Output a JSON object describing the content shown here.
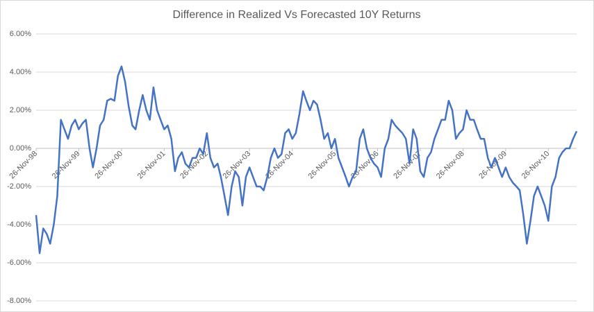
{
  "chart_data": {
    "type": "line",
    "title": "Difference in Realized Vs Forecasted 10Y Returns",
    "x": [
      "1998-11-26",
      "1998-12-26",
      "1999-01-26",
      "1999-02-26",
      "1999-03-26",
      "1999-04-26",
      "1999-05-26",
      "1999-06-26",
      "1999-07-26",
      "1999-08-26",
      "1999-09-26",
      "1999-10-26",
      "1999-11-26",
      "1999-12-26",
      "2000-01-26",
      "2000-02-26",
      "2000-03-26",
      "2000-04-26",
      "2000-05-26",
      "2000-06-26",
      "2000-07-26",
      "2000-08-26",
      "2000-09-26",
      "2000-10-26",
      "2000-11-26",
      "2000-12-26",
      "2001-01-26",
      "2001-02-26",
      "2001-03-26",
      "2001-04-26",
      "2001-05-26",
      "2001-06-26",
      "2001-07-26",
      "2001-08-26",
      "2001-09-26",
      "2001-10-26",
      "2001-11-26",
      "2001-12-26",
      "2002-01-26",
      "2002-02-26",
      "2002-03-26",
      "2002-04-26",
      "2002-05-26",
      "2002-06-26",
      "2002-07-26",
      "2002-08-26",
      "2002-09-26",
      "2002-10-26",
      "2002-11-26",
      "2002-12-26",
      "2003-01-26",
      "2003-02-26",
      "2003-03-26",
      "2003-04-26",
      "2003-05-26",
      "2003-06-26",
      "2003-07-26",
      "2003-08-26",
      "2003-09-26",
      "2003-10-26",
      "2003-11-26",
      "2003-12-26",
      "2004-01-26",
      "2004-02-26",
      "2004-03-26",
      "2004-04-26",
      "2004-05-26",
      "2004-06-26",
      "2004-07-26",
      "2004-08-26",
      "2004-09-26",
      "2004-10-26",
      "2004-11-26",
      "2004-12-26",
      "2005-01-26",
      "2005-02-26",
      "2005-03-26",
      "2005-04-26",
      "2005-05-26",
      "2005-06-26",
      "2005-07-26",
      "2005-08-26",
      "2005-09-26",
      "2005-10-26",
      "2005-11-26",
      "2005-12-26",
      "2006-01-26",
      "2006-02-26",
      "2006-03-26",
      "2006-04-26",
      "2006-05-26",
      "2006-06-26",
      "2006-07-26",
      "2006-08-26",
      "2006-09-26",
      "2006-10-26",
      "2006-11-26",
      "2006-12-26",
      "2007-01-26",
      "2007-02-26",
      "2007-03-26",
      "2007-04-26",
      "2007-05-26",
      "2007-06-26",
      "2007-07-26",
      "2007-08-26",
      "2007-09-26",
      "2007-10-26",
      "2007-11-26",
      "2007-12-26",
      "2008-01-26",
      "2008-02-26",
      "2008-03-26",
      "2008-04-26",
      "2008-05-26",
      "2008-06-26",
      "2008-07-26",
      "2008-08-26",
      "2008-09-26",
      "2008-10-26",
      "2008-11-26",
      "2008-12-26",
      "2009-01-26",
      "2009-02-26",
      "2009-03-26",
      "2009-04-26",
      "2009-05-26",
      "2009-06-26",
      "2009-07-26",
      "2009-08-26",
      "2009-09-26",
      "2009-10-26",
      "2009-11-26",
      "2009-12-26",
      "2010-01-26",
      "2010-02-26",
      "2010-03-26",
      "2010-04-26",
      "2010-05-26",
      "2010-06-26",
      "2010-07-26",
      "2010-08-26",
      "2010-09-26",
      "2010-10-26",
      "2010-11-26",
      "2010-12-26",
      "2011-01-26",
      "2011-02-26",
      "2011-03-26",
      "2011-04-26",
      "2011-05-26",
      "2011-06-26",
      "2011-07-26"
    ],
    "series": [
      {
        "color": "#4472c4",
        "values": [
          -3.5,
          -5.5,
          -4.2,
          -4.5,
          -5.0,
          -4.0,
          -2.5,
          1.5,
          1.0,
          0.5,
          1.2,
          1.5,
          1.0,
          1.3,
          1.5,
          0.0,
          -1.0,
          0.0,
          1.2,
          1.5,
          2.5,
          2.6,
          2.5,
          3.8,
          4.3,
          3.5,
          2.2,
          1.2,
          1.0,
          2.0,
          2.8,
          2.0,
          1.5,
          3.2,
          2.0,
          1.5,
          1.0,
          1.2,
          0.5,
          -1.2,
          -0.5,
          -0.2,
          -0.8,
          -1.0,
          -0.5,
          -0.5,
          0.0,
          -0.3,
          0.8,
          -0.5,
          -1.0,
          -0.8,
          -1.5,
          -2.5,
          -3.5,
          -2.0,
          -1.2,
          -1.5,
          -3.0,
          -1.5,
          -1.0,
          -1.5,
          -2.0,
          -2.0,
          -2.2,
          -1.5,
          -0.5,
          0.0,
          -0.5,
          -0.3,
          0.8,
          1.0,
          0.5,
          0.8,
          1.8,
          3.0,
          2.5,
          2.0,
          2.5,
          2.3,
          1.5,
          0.5,
          0.8,
          0.0,
          0.5,
          -0.5,
          -1.0,
          -1.5,
          -2.0,
          -1.5,
          -1.2,
          0.5,
          1.0,
          0.0,
          -0.5,
          -0.8,
          -1.0,
          -1.5,
          0.0,
          0.5,
          1.5,
          1.2,
          1.0,
          0.8,
          0.5,
          -0.8,
          1.0,
          0.5,
          -1.2,
          -1.5,
          -0.5,
          -0.2,
          0.5,
          1.0,
          1.5,
          1.5,
          2.5,
          2.0,
          0.5,
          0.8,
          1.0,
          2.0,
          1.5,
          1.5,
          1.0,
          0.5,
          0.5,
          -0.5,
          -1.0,
          -0.5,
          -1.0,
          -1.5,
          -1.0,
          -1.5,
          -1.8,
          -2.0,
          -2.2,
          -3.5,
          -5.0,
          -3.8,
          -2.5,
          -2.0,
          -2.5,
          -3.0,
          -3.8,
          -2.0,
          -1.5,
          -0.5,
          -0.2,
          0.0,
          0.0,
          0.5,
          0.9
        ]
      }
    ],
    "xlim": [
      "1998-11-26",
      "2011-07-26"
    ],
    "xticks": [
      {
        "value": "1998-11-26",
        "label": "26-Nov-98"
      },
      {
        "value": "1999-11-26",
        "label": "26-Nov-99"
      },
      {
        "value": "2000-11-26",
        "label": "26-Nov-00"
      },
      {
        "value": "2001-11-26",
        "label": "26-Nov-01"
      },
      {
        "value": "2002-11-26",
        "label": "26-Nov-02"
      },
      {
        "value": "2003-11-26",
        "label": "26-Nov-03"
      },
      {
        "value": "2004-11-26",
        "label": "26-Nov-04"
      },
      {
        "value": "2005-11-26",
        "label": "26-Nov-05"
      },
      {
        "value": "2006-11-26",
        "label": "26-Nov-06"
      },
      {
        "value": "2007-11-26",
        "label": "26-Nov-07"
      },
      {
        "value": "2008-11-26",
        "label": "26-Nov-08"
      },
      {
        "value": "2009-11-26",
        "label": "26-Nov-09"
      },
      {
        "value": "2010-11-26",
        "label": "26-Nov-10"
      }
    ],
    "ylim": [
      -8,
      6
    ],
    "yticks": [
      {
        "value": -8,
        "label": "-8.00%"
      },
      {
        "value": -6,
        "label": "-6.00%"
      },
      {
        "value": -4,
        "label": "-4.00%"
      },
      {
        "value": -2,
        "label": "-2.00%"
      },
      {
        "value": 0,
        "label": "0.00%"
      },
      {
        "value": 2,
        "label": "2.00%"
      },
      {
        "value": 4,
        "label": "4.00%"
      },
      {
        "value": 6,
        "label": "6.00%"
      }
    ],
    "grid": true
  }
}
